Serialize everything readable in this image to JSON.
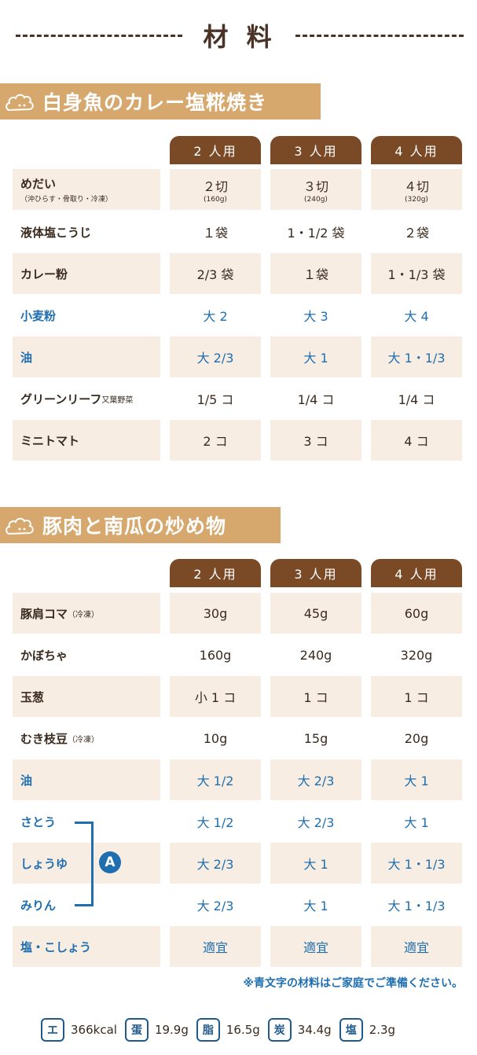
{
  "title": "材 料",
  "sections": [
    {
      "title": "白身魚のカレー塩糀焼き",
      "cols": [
        "2 人用",
        "3 人用",
        "4 人用"
      ],
      "rows": [
        {
          "name": "めだい",
          "sub": "（沖ひらす・骨取り・冷凍）",
          "v": [
            "２切",
            "３切",
            "４切"
          ],
          "vsub": [
            "(160g)",
            "(240g)",
            "(320g)"
          ]
        },
        {
          "name": "液体塩こうじ",
          "v": [
            "１袋",
            "1・1/2 袋",
            "２袋"
          ]
        },
        {
          "name": "カレー粉",
          "v": [
            "2/3 袋",
            "１袋",
            "1・1/3 袋"
          ]
        },
        {
          "name": "小麦粉",
          "v": [
            "大 2",
            "大 3",
            "大 4"
          ]
        },
        {
          "name": "油",
          "v": [
            "大 2/3",
            "大 1",
            "大 1・1/3"
          ]
        },
        {
          "name": "グリーンリーフ",
          "small": "又葉野菜",
          "v": [
            "1/5 コ",
            "1/4 コ",
            "1/4 コ"
          ]
        },
        {
          "name": "ミニトマト",
          "v": [
            "2 コ",
            "3 コ",
            "4 コ"
          ]
        }
      ]
    },
    {
      "title": "豚肉と南瓜の炒め物",
      "cols": [
        "2 人用",
        "3 人用",
        "4 人用"
      ],
      "rows": [
        {
          "name": "豚肩コマ",
          "small": "（冷凍）",
          "v": [
            "30g",
            "45g",
            "60g"
          ]
        },
        {
          "name": "かぼちゃ",
          "v": [
            "160g",
            "240g",
            "320g"
          ]
        },
        {
          "name": "玉葱",
          "v": [
            "小 1 コ",
            "1 コ",
            "1 コ"
          ]
        },
        {
          "name": "むき枝豆",
          "small": "（冷凍）",
          "v": [
            "10g",
            "15g",
            "20g"
          ]
        },
        {
          "name": "油",
          "v": [
            "大 1/2",
            "大 2/3",
            "大 1"
          ]
        },
        {
          "name": "さとう",
          "v": [
            "大 1/2",
            "大 2/3",
            "大 1"
          ]
        },
        {
          "name": "しょうゆ",
          "v": [
            "大 2/3",
            "大 1",
            "大 1・1/3"
          ]
        },
        {
          "name": "みりん",
          "v": [
            "大 2/3",
            "大 1",
            "大 1・1/3"
          ]
        },
        {
          "name": "塩・こしょう",
          "v": [
            "適宜",
            "適宜",
            "適宜"
          ]
        }
      ]
    }
  ],
  "group_badge": "A",
  "note": "※青文字の材料はご家庭でご準備ください。",
  "nutrition": [
    {
      "label": "エ",
      "value": "366kcal"
    },
    {
      "label": "蛋",
      "value": "19.9g"
    },
    {
      "label": "脂",
      "value": "16.5g"
    },
    {
      "label": "炭",
      "value": "34.4g"
    },
    {
      "label": "塩",
      "value": "2.3g"
    }
  ],
  "colors": {
    "accent": "#d7a86e",
    "header": "#7a4a26",
    "shade": "#f7ede3",
    "blue": "#1f6fb0"
  }
}
